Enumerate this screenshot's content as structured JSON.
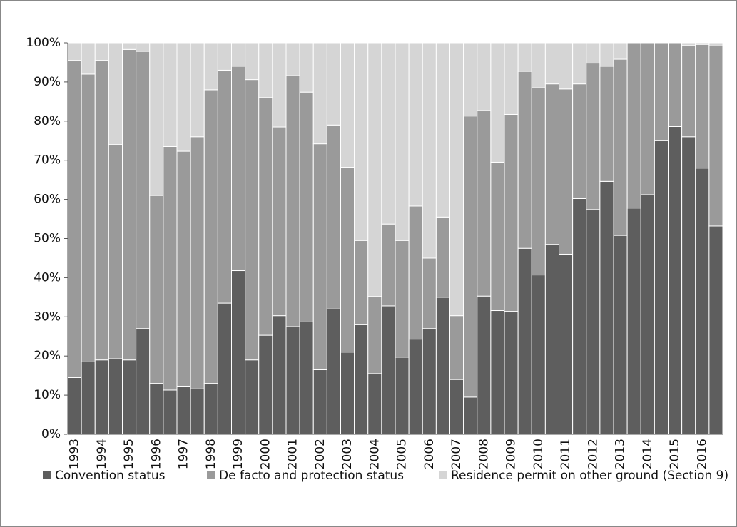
{
  "chart_data": {
    "type": "stacked_bar",
    "categories": [
      "1993",
      null,
      "1994",
      null,
      "1995",
      null,
      "1996",
      null,
      "1997",
      null,
      "1998",
      null,
      "1999",
      null,
      "2000",
      null,
      "2001",
      null,
      "2002",
      null,
      "2003",
      null,
      "2004",
      null,
      "2005",
      null,
      "2006",
      null,
      "2007",
      null,
      "2008",
      null,
      "2009",
      null,
      "2010",
      null,
      "2011",
      null,
      "2012",
      null,
      "2013",
      null,
      "2014",
      null,
      "2015",
      null,
      "2016",
      null
    ],
    "series": [
      {
        "name": "Convention status",
        "color": "#5e5e5e",
        "values": [
          14.5,
          18.5,
          19,
          19.3,
          19,
          27,
          13,
          11.3,
          12.3,
          11.6,
          13,
          33.5,
          41.8,
          19,
          25.3,
          30.3,
          27.5,
          28.7,
          16.5,
          32,
          21,
          28,
          15.5,
          32.8,
          19.7,
          24.3,
          27,
          35,
          14,
          9.5,
          35.3,
          31.6,
          31.4,
          47.5,
          40.7,
          48.5,
          46,
          60.2,
          57.4,
          64.6,
          50.8,
          57.8,
          61.2,
          75,
          78.6,
          76,
          68,
          53.2
        ]
      },
      {
        "name": "De facto and protection status",
        "color": "#9a9a9a",
        "values": [
          81,
          73.5,
          76.5,
          54.7,
          79.3,
          70.8,
          48,
          62.2,
          60,
          64.4,
          75,
          59.5,
          52.2,
          71.6,
          60.7,
          48.2,
          64.1,
          58.7,
          57.7,
          47,
          47.2,
          21.5,
          19.7,
          20.9,
          29.8,
          34,
          18,
          20.5,
          16.3,
          71.8,
          47.4,
          37.9,
          50.3,
          45.2,
          47.8,
          41,
          42.2,
          29.3,
          37.4,
          29.4,
          45,
          42.2,
          38.8,
          25,
          21.4,
          23.3,
          31.6,
          46
        ]
      },
      {
        "name": "Residence permit on other ground (Section 9)",
        "color": "#d5d5d5",
        "values": [
          4.5,
          8,
          4.5,
          26,
          1.7,
          2.2,
          39,
          26.5,
          27.7,
          24,
          12,
          7,
          6,
          9.4,
          14,
          21.5,
          8.4,
          12.6,
          25.8,
          21,
          31.8,
          50.5,
          64.8,
          46.3,
          50.5,
          41.7,
          55,
          44.5,
          69.7,
          18.7,
          17.3,
          30.5,
          18.3,
          7.3,
          11.5,
          10.5,
          11.8,
          10.5,
          5.2,
          6,
          4.2,
          0,
          0,
          0,
          0,
          0.7,
          0.4,
          0.8
        ]
      }
    ],
    "ylim": [
      0,
      100
    ],
    "yticks": [
      {
        "value": 0,
        "label": "0%"
      },
      {
        "value": 10,
        "label": "10%"
      },
      {
        "value": 20,
        "label": "20%"
      },
      {
        "value": 30,
        "label": "30%"
      },
      {
        "value": 40,
        "label": "40%"
      },
      {
        "value": 50,
        "label": "50%"
      },
      {
        "value": 60,
        "label": "60%"
      },
      {
        "value": 70,
        "label": "70%"
      },
      {
        "value": 80,
        "label": "80%"
      },
      {
        "value": 90,
        "label": "90%"
      },
      {
        "value": 100,
        "label": "100%"
      }
    ],
    "legend": "bottom"
  }
}
